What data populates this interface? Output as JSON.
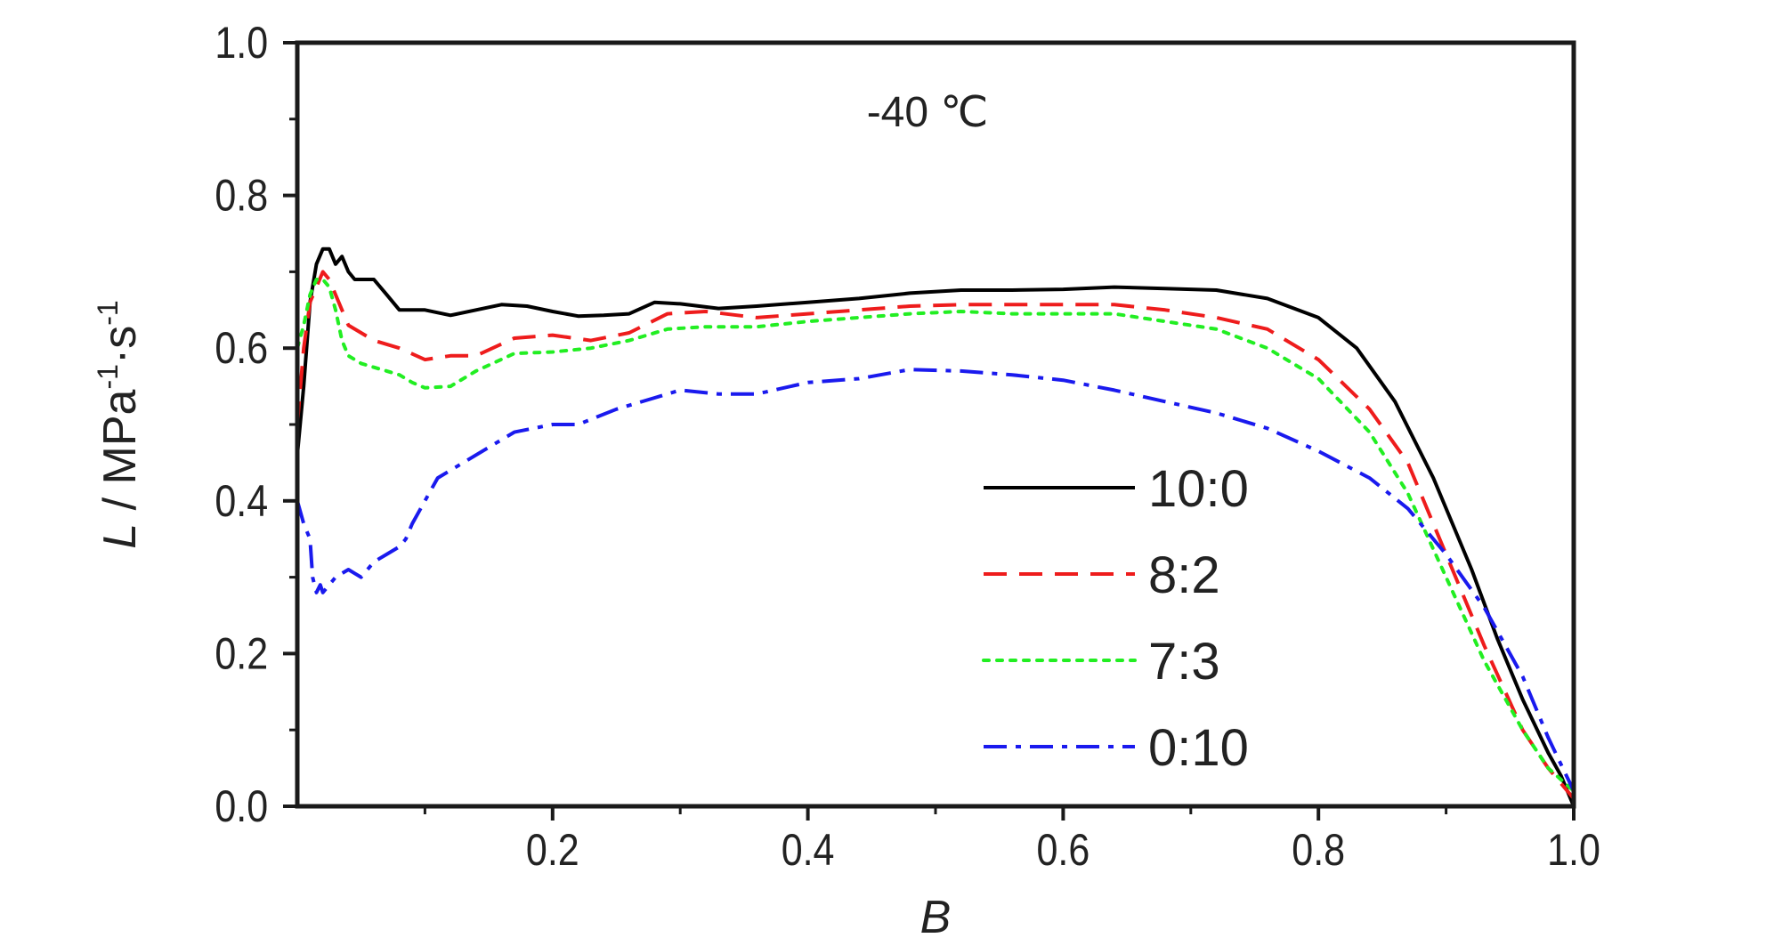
{
  "chart_data": {
    "type": "line",
    "title": "",
    "annotation": "-40 ℃",
    "xlabel": "B",
    "ylabel": {
      "main": "L / MPa",
      "sup1": "-1",
      "dot": "·s",
      "sup2": "-1"
    },
    "xlim": [
      0,
      1.0
    ],
    "ylim": [
      0,
      1.0
    ],
    "xticks": [
      "0.2",
      "0.4",
      "0.6",
      "0.8",
      "1.0"
    ],
    "yticks": [
      "0.0",
      "0.2",
      "0.4",
      "0.6",
      "0.8",
      "1.0"
    ],
    "grid": false,
    "legend_position": "center-right",
    "series": [
      {
        "name": "10:0",
        "color": "#000000",
        "dash": "solid",
        "x": [
          0.0,
          0.005,
          0.01,
          0.015,
          0.02,
          0.025,
          0.03,
          0.035,
          0.04,
          0.045,
          0.05,
          0.055,
          0.06,
          0.07,
          0.08,
          0.09,
          0.1,
          0.12,
          0.14,
          0.16,
          0.18,
          0.2,
          0.22,
          0.24,
          0.26,
          0.28,
          0.3,
          0.33,
          0.36,
          0.4,
          0.44,
          0.48,
          0.52,
          0.56,
          0.6,
          0.64,
          0.68,
          0.72,
          0.76,
          0.8,
          0.83,
          0.86,
          0.89,
          0.92,
          0.94,
          0.96,
          0.98,
          0.99,
          1.0
        ],
        "y": [
          0.46,
          0.55,
          0.66,
          0.71,
          0.73,
          0.73,
          0.71,
          0.72,
          0.7,
          0.69,
          0.69,
          0.69,
          0.69,
          0.67,
          0.65,
          0.65,
          0.65,
          0.643,
          0.65,
          0.657,
          0.655,
          0.648,
          0.642,
          0.643,
          0.645,
          0.66,
          0.658,
          0.652,
          0.655,
          0.66,
          0.665,
          0.672,
          0.676,
          0.676,
          0.677,
          0.68,
          0.678,
          0.676,
          0.665,
          0.64,
          0.6,
          0.53,
          0.43,
          0.31,
          0.22,
          0.14,
          0.07,
          0.04,
          0.0
        ]
      },
      {
        "name": "8:2",
        "color": "#ee1c1c",
        "dash": "dashed",
        "x": [
          0.0,
          0.005,
          0.01,
          0.015,
          0.02,
          0.025,
          0.03,
          0.035,
          0.04,
          0.05,
          0.06,
          0.08,
          0.1,
          0.12,
          0.14,
          0.17,
          0.2,
          0.23,
          0.26,
          0.29,
          0.32,
          0.36,
          0.4,
          0.44,
          0.48,
          0.52,
          0.56,
          0.6,
          0.64,
          0.68,
          0.72,
          0.76,
          0.8,
          0.84,
          0.87,
          0.9,
          0.93,
          0.96,
          0.98,
          1.0
        ],
        "y": [
          0.5,
          0.6,
          0.66,
          0.68,
          0.7,
          0.69,
          0.67,
          0.65,
          0.63,
          0.62,
          0.61,
          0.6,
          0.585,
          0.59,
          0.59,
          0.613,
          0.617,
          0.61,
          0.62,
          0.645,
          0.648,
          0.64,
          0.645,
          0.65,
          0.655,
          0.657,
          0.657,
          0.657,
          0.657,
          0.65,
          0.64,
          0.625,
          0.585,
          0.52,
          0.45,
          0.33,
          0.21,
          0.1,
          0.05,
          0.01
        ]
      },
      {
        "name": "7:3",
        "color": "#22ee22",
        "dash": "dotted",
        "x": [
          0.0,
          0.005,
          0.01,
          0.015,
          0.02,
          0.025,
          0.03,
          0.035,
          0.04,
          0.05,
          0.06,
          0.07,
          0.08,
          0.09,
          0.1,
          0.12,
          0.14,
          0.17,
          0.2,
          0.23,
          0.26,
          0.29,
          0.32,
          0.36,
          0.4,
          0.44,
          0.48,
          0.52,
          0.56,
          0.6,
          0.64,
          0.68,
          0.72,
          0.76,
          0.8,
          0.84,
          0.87,
          0.9,
          0.93,
          0.96,
          0.98,
          1.0
        ],
        "y": [
          0.6,
          0.63,
          0.67,
          0.69,
          0.69,
          0.68,
          0.65,
          0.61,
          0.59,
          0.58,
          0.575,
          0.57,
          0.565,
          0.555,
          0.548,
          0.55,
          0.57,
          0.593,
          0.595,
          0.6,
          0.61,
          0.625,
          0.628,
          0.628,
          0.635,
          0.64,
          0.645,
          0.648,
          0.645,
          0.645,
          0.645,
          0.635,
          0.625,
          0.6,
          0.56,
          0.49,
          0.41,
          0.3,
          0.19,
          0.1,
          0.05,
          0.02
        ]
      },
      {
        "name": "0:10",
        "color": "#1a1aee",
        "dash": "dashdot",
        "x": [
          0.0,
          0.005,
          0.01,
          0.012,
          0.015,
          0.018,
          0.02,
          0.025,
          0.03,
          0.04,
          0.045,
          0.05,
          0.06,
          0.07,
          0.08,
          0.085,
          0.09,
          0.1,
          0.11,
          0.13,
          0.15,
          0.17,
          0.2,
          0.22,
          0.25,
          0.28,
          0.3,
          0.33,
          0.36,
          0.4,
          0.44,
          0.48,
          0.52,
          0.56,
          0.6,
          0.64,
          0.68,
          0.72,
          0.76,
          0.8,
          0.84,
          0.87,
          0.9,
          0.93,
          0.96,
          0.98,
          1.0
        ],
        "y": [
          0.4,
          0.37,
          0.35,
          0.3,
          0.28,
          0.29,
          0.28,
          0.29,
          0.3,
          0.31,
          0.305,
          0.3,
          0.32,
          0.33,
          0.34,
          0.35,
          0.37,
          0.4,
          0.43,
          0.45,
          0.47,
          0.49,
          0.5,
          0.5,
          0.52,
          0.535,
          0.545,
          0.54,
          0.54,
          0.555,
          0.56,
          0.572,
          0.57,
          0.565,
          0.558,
          0.545,
          0.53,
          0.515,
          0.495,
          0.465,
          0.43,
          0.39,
          0.33,
          0.26,
          0.17,
          0.09,
          0.02
        ]
      }
    ]
  }
}
